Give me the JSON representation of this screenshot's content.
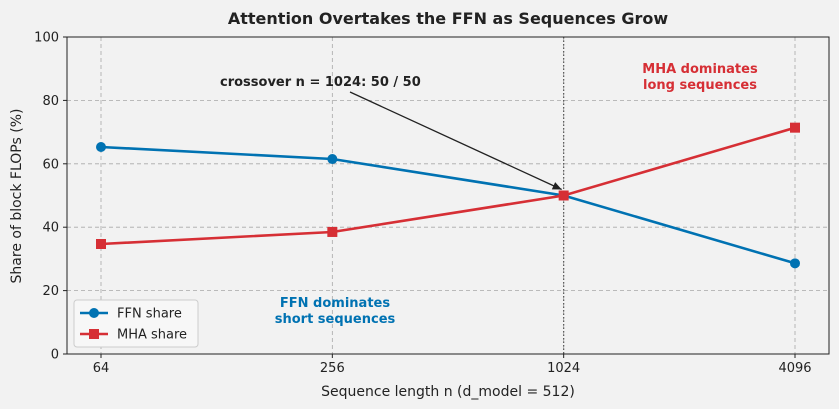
{
  "chart_data": {
    "type": "line",
    "title": "Attention Overtakes the FFN as Sequences Grow",
    "xlabel": "Sequence length n  (d_model = 512)",
    "ylabel": "Share of block FLOPs (%)",
    "x_scale": "log2",
    "x": [
      64,
      256,
      1024,
      4096
    ],
    "x_tick_labels": [
      "64",
      "256",
      "1024",
      "4096"
    ],
    "ylim": [
      0,
      100
    ],
    "y_ticks": [
      0,
      20,
      40,
      60,
      80,
      100
    ],
    "grid": true,
    "legend_position": "lower-left",
    "series": [
      {
        "name": "FFN share",
        "color": "#0072b2",
        "marker": "circle",
        "values": [
          65.3,
          61.5,
          50.0,
          28.6
        ]
      },
      {
        "name": "MHA share",
        "color": "#d62f35",
        "marker": "square",
        "values": [
          34.7,
          38.5,
          50.0,
          71.4
        ]
      }
    ],
    "vertical_line_x": 1024,
    "annotations": [
      {
        "id": "crossover",
        "text": "crossover n = 1024: 50 / 50",
        "color": "#222222",
        "arrow_to": [
          1024,
          50
        ]
      },
      {
        "id": "mha",
        "lines": [
          "MHA dominates",
          "long sequences"
        ],
        "color": "#d62f35"
      },
      {
        "id": "ffn",
        "lines": [
          "FFN dominates",
          "short sequences"
        ],
        "color": "#0072b2"
      }
    ]
  }
}
